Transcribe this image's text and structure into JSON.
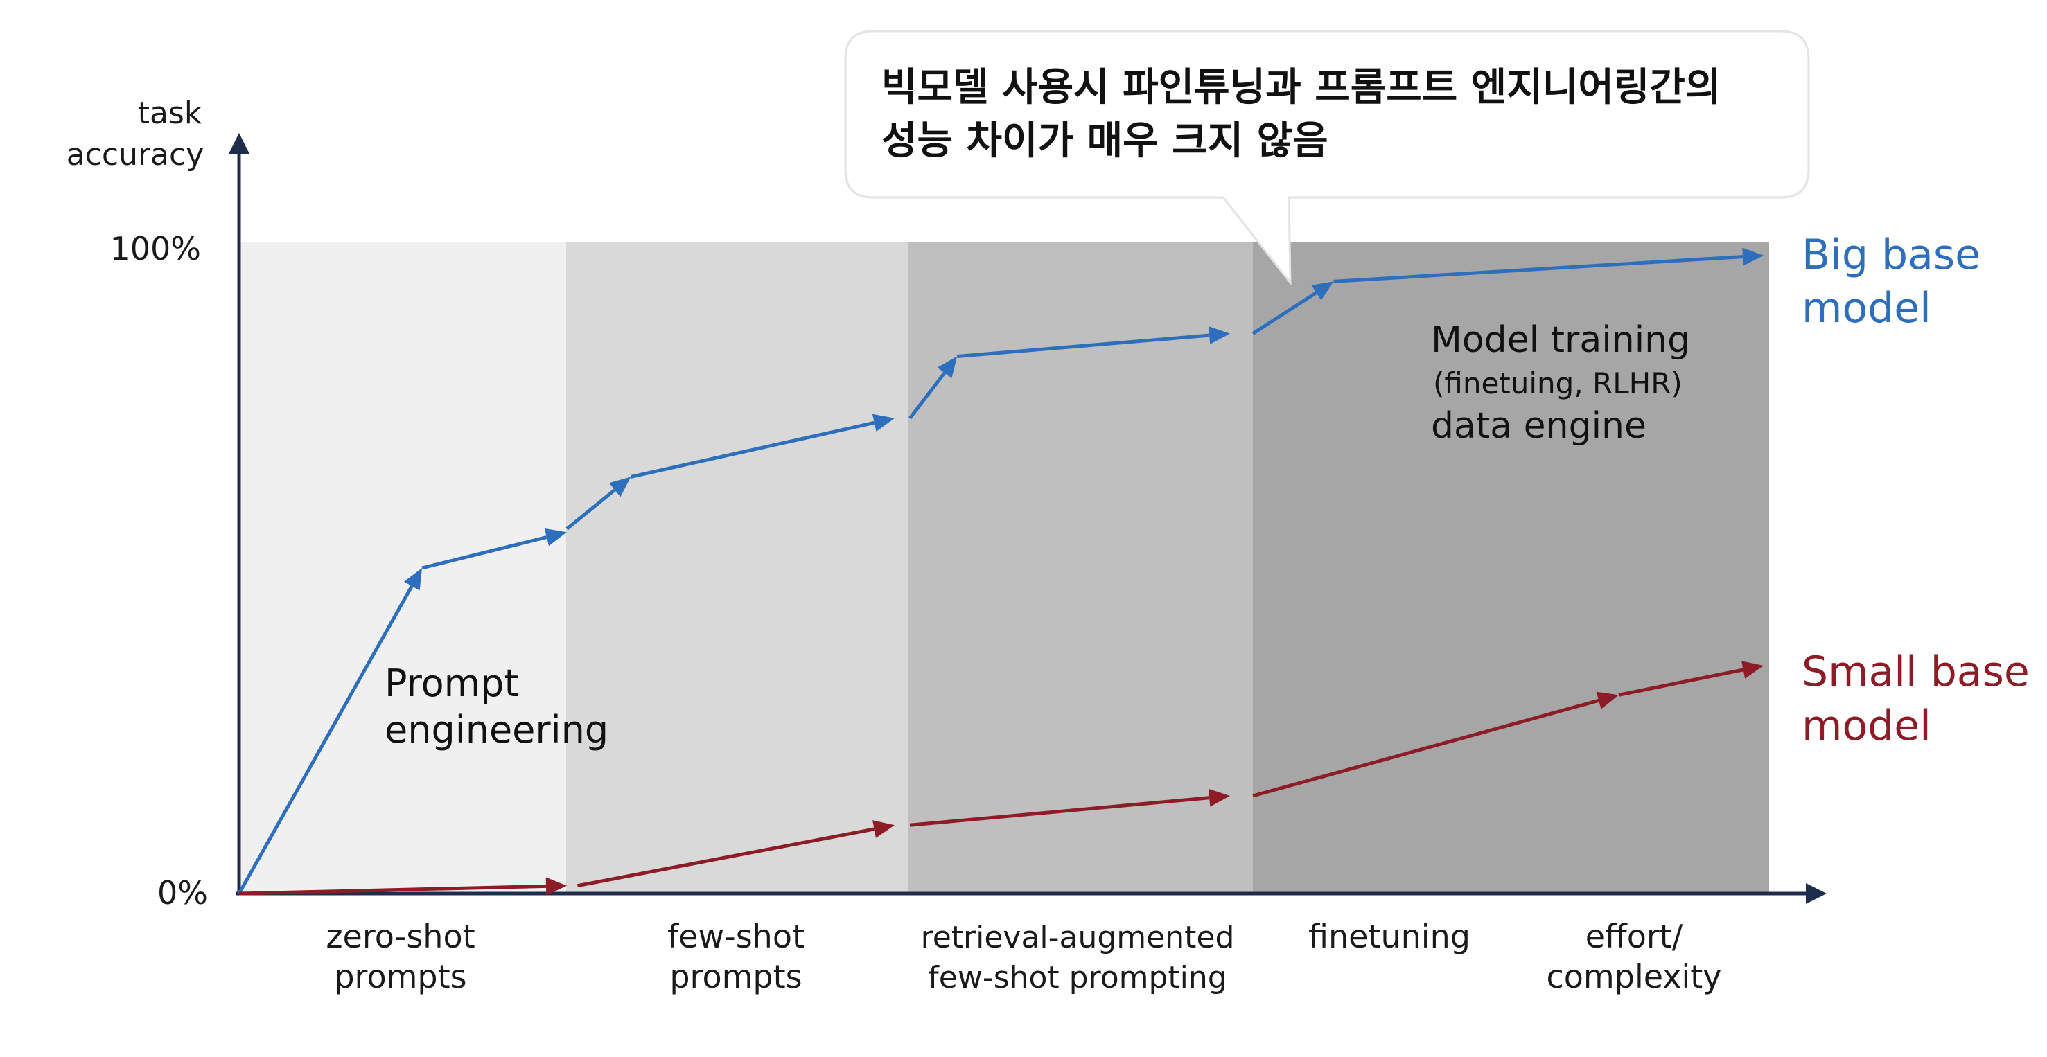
{
  "axes": {
    "y_label_line1": "task",
    "y_label_line2": "accuracy",
    "y_tick_top": "100%",
    "y_tick_bottom": "0%"
  },
  "stages": [
    {
      "line1": "zero-shot",
      "line2": "prompts",
      "color": "#f0f0f0"
    },
    {
      "line1": "few-shot",
      "line2": "prompts",
      "color": "#d9d9d9"
    },
    {
      "line1": "retrieval-augmented",
      "line2": "few-shot prompting",
      "color": "#bfbfbf"
    },
    {
      "line1": "finetuning",
      "line2": "",
      "color": "#a6a6a6"
    }
  ],
  "x_axis_end_label": {
    "line1": "effort/",
    "line2": "complexity"
  },
  "callout": {
    "line1": "빅모델 사용시 파인튜닝과 프롬프트 엔지니어링간의",
    "line2": "성능 차이가 매우 크지 않음"
  },
  "annotations": {
    "prompt_line1": "Prompt",
    "prompt_line2": "engineering",
    "training_line1": "Model training",
    "training_line2": "(finetuing, RLHR)",
    "training_line3": "data engine"
  },
  "series": [
    {
      "name_line1": "Big base",
      "name_line2": "model",
      "color": "#2e6fbd",
      "segments": [
        [
          [
            0,
            0
          ],
          [
            0.12,
            50
          ]
        ],
        [
          [
            0.12,
            50
          ],
          [
            0.215,
            55.5
          ]
        ],
        [
          [
            0.215,
            56
          ],
          [
            0.257,
            64
          ]
        ],
        [
          [
            0.257,
            64
          ],
          [
            0.43,
            73
          ]
        ],
        [
          [
            0.44,
            73
          ],
          [
            0.471,
            82.5
          ]
        ],
        [
          [
            0.471,
            82.5
          ],
          [
            0.65,
            86
          ]
        ],
        [
          [
            0.665,
            86
          ],
          [
            0.718,
            94
          ]
        ],
        [
          [
            0.718,
            94
          ],
          [
            1.0,
            98
          ]
        ]
      ]
    },
    {
      "name_line1": "Small base",
      "name_line2": "model",
      "color": "#8e1c27",
      "segments": [
        [
          [
            0,
            0
          ],
          [
            0.215,
            1.2
          ]
        ],
        [
          [
            0.222,
            1.2
          ],
          [
            0.43,
            10.5
          ]
        ],
        [
          [
            0.44,
            10.5
          ],
          [
            0.65,
            15
          ]
        ],
        [
          [
            0.665,
            15
          ],
          [
            0.905,
            30.5
          ]
        ],
        [
          [
            0.905,
            30.5
          ],
          [
            1.0,
            35
          ]
        ]
      ]
    }
  ]
}
